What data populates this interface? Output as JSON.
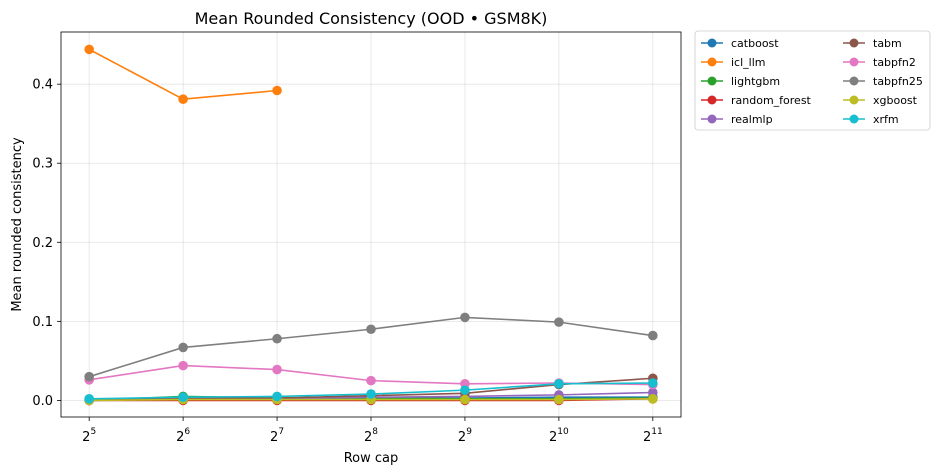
{
  "chart_data": {
    "type": "line",
    "title": "Mean Rounded Consistency (OOD • GSM8K)",
    "xlabel": "Row cap",
    "ylabel": "Mean rounded consistency",
    "x_scale": "log2",
    "x": [
      5,
      6,
      7,
      8,
      9,
      10,
      11
    ],
    "x_tick_labels": [
      {
        "base": "2",
        "exp": "5"
      },
      {
        "base": "2",
        "exp": "6"
      },
      {
        "base": "2",
        "exp": "7"
      },
      {
        "base": "2",
        "exp": "8"
      },
      {
        "base": "2",
        "exp": "9"
      },
      {
        "base": "2",
        "exp": "10"
      },
      {
        "base": "2",
        "exp": "11"
      }
    ],
    "ylim": [
      -0.021,
      0.466
    ],
    "y_ticks": [
      0.0,
      0.1,
      0.2,
      0.3,
      0.4
    ],
    "y_tick_labels": [
      "0.0",
      "0.1",
      "0.2",
      "0.3",
      "0.4"
    ],
    "grid": true,
    "legend_placement": "outside-top-right",
    "series": [
      {
        "name": "catboost",
        "color": "#1f77b4",
        "values": [
          0.001,
          0.002,
          0.002,
          0.003,
          0.003,
          0.004,
          0.004
        ]
      },
      {
        "name": "icl_llm",
        "color": "#ff7f0e",
        "values": [
          0.444,
          0.381,
          0.392,
          null,
          null,
          null,
          null
        ]
      },
      {
        "name": "lightgbm",
        "color": "#2ca02c",
        "values": [
          0.0,
          0.005,
          0.003,
          0.003,
          0.002,
          0.002,
          0.003
        ]
      },
      {
        "name": "random_forest",
        "color": "#d62728",
        "values": [
          0.0,
          0.0,
          0.0,
          0.0,
          0.0,
          0.0,
          0.002
        ]
      },
      {
        "name": "realmlp",
        "color": "#9467bd",
        "values": [
          0.0,
          0.002,
          0.002,
          0.004,
          0.005,
          0.007,
          0.01
        ]
      },
      {
        "name": "tabm",
        "color": "#8c564b",
        "values": [
          0.0,
          0.003,
          0.003,
          0.006,
          0.009,
          0.02,
          0.028
        ]
      },
      {
        "name": "tabpfn2",
        "color": "#e377c2",
        "values": [
          0.026,
          0.044,
          0.039,
          0.025,
          0.021,
          0.022,
          0.02
        ]
      },
      {
        "name": "tabpfn25",
        "color": "#7f7f7f",
        "values": [
          0.03,
          0.067,
          0.078,
          0.09,
          0.105,
          0.099,
          0.082
        ]
      },
      {
        "name": "xgboost",
        "color": "#bcbd22",
        "values": [
          0.0,
          0.001,
          0.001,
          0.001,
          0.001,
          0.001,
          0.002
        ]
      },
      {
        "name": "xrfm",
        "color": "#17becf",
        "values": [
          0.002,
          0.004,
          0.005,
          0.008,
          0.013,
          0.021,
          0.022
        ]
      }
    ]
  }
}
